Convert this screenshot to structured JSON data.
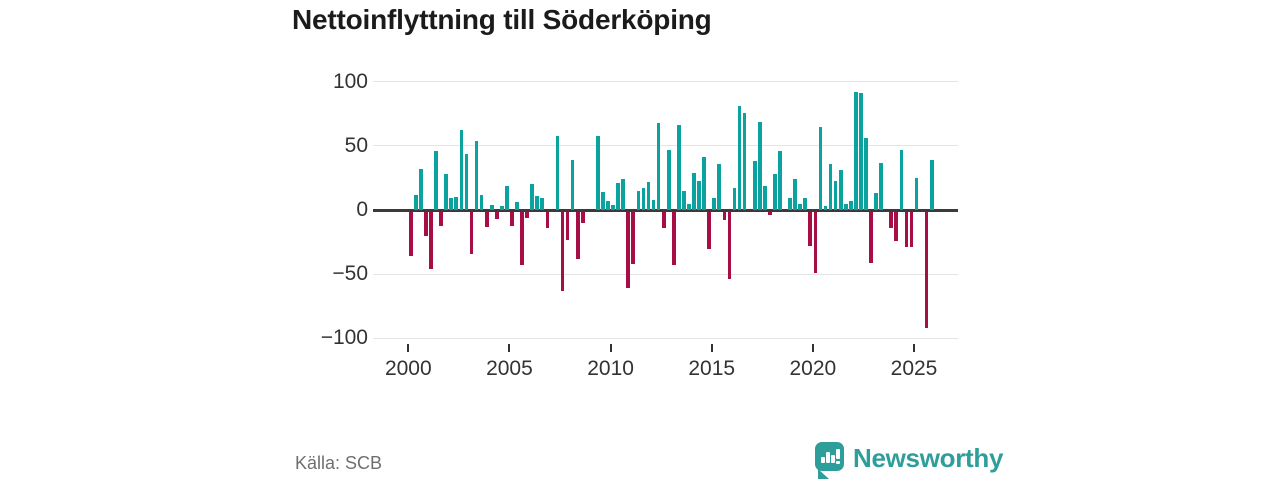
{
  "title": "Nettoinflyttning till Söderköping",
  "source": "Källa: SCB",
  "branding": {
    "logo_text": "Newsworthy",
    "brand_color": "#2d9e9a"
  },
  "colors": {
    "positive_bar": "#0ba3a0",
    "negative_bar": "#a60e45",
    "gridline": "#e4e4e4",
    "zero_line": "#3a3a3a",
    "axis_text": "#333333",
    "title_text": "#1b1b1b",
    "source_text": "#6f6f6f"
  },
  "chart_data": {
    "type": "bar",
    "title": "Nettoinflyttning till Söderköping",
    "frequency": "quarterly",
    "start_year": 2000,
    "quarters_per_year": 4,
    "x_tick_labels": [
      "2000",
      "2005",
      "2010",
      "2015",
      "2020",
      "2025"
    ],
    "y_tick_labels": [
      "100",
      "50",
      "0",
      "−50",
      "−100"
    ],
    "y_tick_values": [
      100,
      50,
      0,
      -50,
      -100
    ],
    "ylim": [
      -100,
      100
    ],
    "grid": true,
    "legend": false,
    "values": [
      -35,
      12,
      32,
      -19,
      -45,
      46,
      -11,
      28,
      9,
      10,
      62,
      44,
      -33,
      54,
      12,
      -12,
      4,
      -6,
      3,
      19,
      -11,
      6,
      -42,
      -5,
      20,
      11,
      9,
      -13,
      0,
      58,
      -62,
      -22,
      39,
      -37,
      -9,
      0,
      0,
      58,
      14,
      7,
      4,
      21,
      24,
      -60,
      -41,
      15,
      17,
      22,
      8,
      68,
      -13,
      47,
      -42,
      66,
      15,
      5,
      29,
      23,
      41,
      -29,
      9,
      36,
      -7,
      -53,
      17,
      81,
      76,
      0,
      38,
      69,
      19,
      -3,
      28,
      46,
      0,
      9,
      24,
      5,
      9,
      -27,
      -48,
      65,
      3,
      36,
      23,
      31,
      5,
      7,
      92,
      91,
      56,
      -40,
      13,
      37,
      0,
      -13,
      -23,
      47,
      -28,
      -28,
      25,
      0,
      -91,
      39
    ]
  }
}
